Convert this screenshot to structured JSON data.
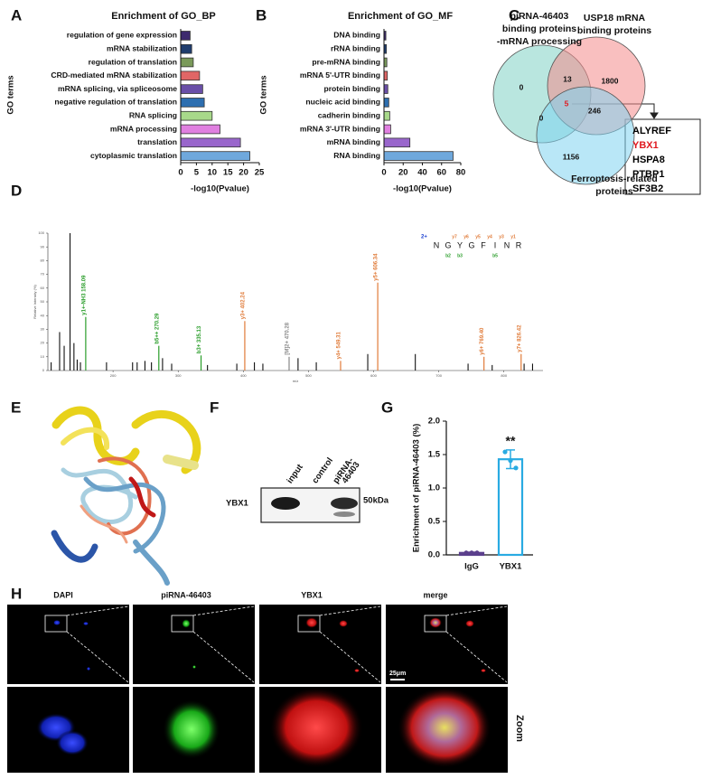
{
  "panels": [
    "A",
    "B",
    "C",
    "D",
    "E",
    "F",
    "G",
    "H"
  ],
  "chart_data": [
    {
      "type": "hbar",
      "title": "Enrichment of GO_BP",
      "xlabel": "-log10(Pvalue)",
      "ylabel": "GO terms",
      "categories": [
        "regulation of gene expression",
        "mRNA stabilization",
        "regulation of translation",
        "CRD-mediated mRNA stabilization",
        "mRNA splicing, via spliceosome",
        "negative regulation of translation",
        "RNA splicing",
        "mRNA processing",
        "translation",
        "cytoplasmic translation"
      ],
      "values": [
        3,
        3.5,
        4,
        6,
        7,
        7.5,
        10,
        12.5,
        19,
        22
      ],
      "colors": [
        "#3d2a6e",
        "#1f3d6e",
        "#7a9a5a",
        "#e06666",
        "#6a4fa8",
        "#2e6fb0",
        "#a8d98a",
        "#e07fe0",
        "#9966cc",
        "#6fa8dc"
      ],
      "xlim": [
        0,
        25
      ],
      "xticks": [
        0,
        5,
        10,
        15,
        20,
        25
      ]
    },
    {
      "type": "hbar",
      "title": "Enrichment of GO_MF",
      "xlabel": "-log10(Pvalue)",
      "ylabel": "GO terms",
      "categories": [
        "DNA binding",
        "rRNA binding",
        "pre-mRNA binding",
        "mRNA 5'-UTR binding",
        "protein binding",
        "nucleic acid binding",
        "cadherin binding",
        "mRNA 3'-UTR binding",
        "mRNA binding",
        "RNA binding"
      ],
      "values": [
        2,
        2.5,
        3,
        3.5,
        4,
        5,
        6,
        7,
        27,
        72
      ],
      "colors": [
        "#3d2a6e",
        "#1f3d6e",
        "#7a9a5a",
        "#e06666",
        "#6a4fa8",
        "#2e6fb0",
        "#a8d98a",
        "#e07fe0",
        "#9966cc",
        "#6fa8dc"
      ],
      "xlim": [
        0,
        80
      ],
      "xticks": [
        0,
        20,
        40,
        60,
        80
      ]
    },
    {
      "type": "spectrum",
      "xlabel": "m/z",
      "ylabel": "Relative Intensity (%)",
      "xlim": [
        100,
        860
      ],
      "ylim": [
        0,
        100
      ],
      "xticks": [
        200,
        300,
        400,
        500,
        600,
        700,
        800
      ],
      "yticks": [
        0,
        10,
        20,
        30,
        40,
        50,
        60,
        70,
        80,
        90,
        100
      ],
      "charge": "2+",
      "sequence": [
        "N",
        "G",
        "Y",
        "G",
        "F",
        "I",
        "N",
        "R"
      ],
      "y_ions": [
        "y7",
        "y6",
        "y5",
        "y4",
        "y3",
        "y1"
      ],
      "b_ions": [
        "b2",
        "b3",
        "b5"
      ],
      "peaks": {
        "x": [
          105,
          118,
          125,
          134,
          140,
          145,
          150,
          190,
          230,
          237,
          249,
          259,
          276,
          290,
          345,
          390,
          417,
          430,
          484,
          512,
          591,
          664,
          745,
          782,
          831,
          844
        ],
        "values": [
          6,
          28,
          18,
          100,
          20,
          8,
          6,
          6,
          6,
          6,
          7,
          6,
          9,
          5,
          4,
          5,
          6,
          5,
          9,
          6,
          12,
          12,
          5,
          4,
          5,
          5
        ],
        "color": "#111111"
      },
      "annotated": {
        "x": [
          158.09,
          270.29,
          335.13,
          402.24,
          470.28,
          549.31,
          606.34,
          769.4,
          826.42
        ],
        "values": [
          39,
          18,
          11,
          36,
          10,
          7,
          64,
          10,
          12
        ],
        "labels": [
          "y1+-NH3 158.09",
          "b5++ 270.29",
          "b3+ 335.13",
          "y3+ 402.24",
          "[M]2+ 470.28",
          "y4+ 549.31",
          "y5+ 606.34",
          "y6+ 769.40",
          "y7+ 826.42"
        ],
        "colors": [
          "#2a9d2a",
          "#2a9d2a",
          "#2a9d2a",
          "#e07b39",
          "#888888",
          "#e07b39",
          "#e07b39",
          "#e07b39",
          "#e07b39"
        ]
      }
    },
    {
      "type": "bar_dots",
      "ylabel": "Enrichment of piRNA-46403 (%)",
      "categories": [
        "IgG",
        "YBX1"
      ],
      "values": [
        0.03,
        1.43
      ],
      "errors": [
        0.01,
        0.14
      ],
      "points": [
        [
          0.03,
          0.03,
          0.03
        ],
        [
          1.54,
          1.41,
          1.3
        ]
      ],
      "colors": [
        "#5b3f8c",
        "#29abe2"
      ],
      "ylim": [
        0,
        2
      ],
      "yticks": [
        {
          "value": 0,
          "label": "0.0"
        },
        0.5,
        {
          "value": 1,
          "label": "1.0"
        },
        1.5,
        {
          "value": 2,
          "label": "2.0"
        }
      ],
      "annotation": "**"
    }
  ],
  "venn": {
    "sets": [
      {
        "label": [
          "piRNA-46403",
          "binding proteins",
          "-mRNA processing"
        ],
        "color": "#7fd1c4"
      },
      {
        "label": [
          "USP18 mRNA",
          "binding proteins"
        ],
        "color": "#f48a8a"
      },
      {
        "label": [
          "Ferroptosis-related",
          "proteins"
        ],
        "color": "#7fd3f0"
      }
    ],
    "regions": {
      "only_1": 0,
      "only_2": 1800,
      "only_3": 1156,
      "1_2": 13,
      "1_3": 0,
      "2_3": 246,
      "all": 5
    },
    "center_color": "#e0191f",
    "overlap_genes": [
      "ALYREF",
      "YBX1",
      "HSPA8",
      "PTBP1",
      "SF3B2"
    ],
    "gene_colors": [
      "#000000",
      "#e0191f",
      "#000000",
      "#000000",
      "#000000"
    ]
  },
  "western_blot": {
    "lanes": [
      [
        "input"
      ],
      [
        "control"
      ],
      [
        "piRNA-",
        "46403"
      ]
    ],
    "protein": "YBX1",
    "marker": "50kDa"
  },
  "microscopy": {
    "channels": [
      "DAPI",
      "piRNA-46403",
      "YBX1",
      "merge"
    ],
    "scale_bar": "25μm",
    "zoom_label": "Zoom"
  }
}
